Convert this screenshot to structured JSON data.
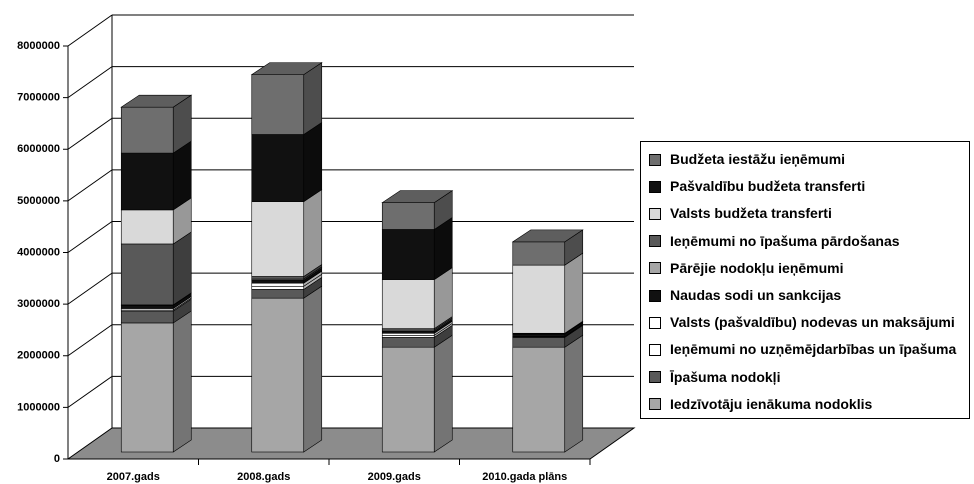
{
  "chart_data": {
    "type": "bar3d_stacked",
    "categories": [
      "2007.gads",
      "2008.gads",
      "2009.gads",
      "2010.gada plāns"
    ],
    "ylim": [
      0,
      8000000
    ],
    "yticks": [
      0,
      1000000,
      2000000,
      3000000,
      4000000,
      5000000,
      6000000,
      7000000,
      8000000
    ],
    "series": [
      {
        "name": "Iedzīvotāju ienākuma nodoklis",
        "color": "#a6a6a6",
        "values": [
          2500000,
          2980000,
          2030000,
          2030000
        ]
      },
      {
        "name": "Īpašuma nodokļi",
        "color": "#595959",
        "values": [
          230000,
          170000,
          190000,
          190000
        ]
      },
      {
        "name": "Ieņēmumi no uzņēmējdarbības un īpašuma",
        "color": "#ffffff",
        "values": [
          20000,
          60000,
          40000,
          10000
        ]
      },
      {
        "name": "Valsts (pašvaldību) nodevas un maksājumi",
        "color": "#ffffff",
        "values": [
          30000,
          60000,
          40000,
          10000
        ]
      },
      {
        "name": "Naudas sodi un sankcijas",
        "color": "#111111",
        "values": [
          60000,
          60000,
          40000,
          40000
        ]
      },
      {
        "name": "Pārējie nodokļu ieņēmumi",
        "color": "#a6a6a6",
        "values": [
          10000,
          20000,
          20000,
          10000
        ]
      },
      {
        "name": "Ieņēmumi no īpašuma pārdošanas",
        "color": "#595959",
        "values": [
          1180000,
          50000,
          30000,
          10000
        ]
      },
      {
        "name": "Valsts budžeta transferti",
        "color": "#d9d9d9",
        "values": [
          660000,
          1450000,
          950000,
          1320000
        ]
      },
      {
        "name": "Pašvaldību budžeta transferti",
        "color": "#111111",
        "values": [
          1100000,
          1300000,
          970000,
          0
        ]
      },
      {
        "name": "Budžeta iestāžu ieņēmumi",
        "color": "#6e6e6e",
        "values": [
          890000,
          1160000,
          520000,
          450000
        ]
      }
    ]
  }
}
